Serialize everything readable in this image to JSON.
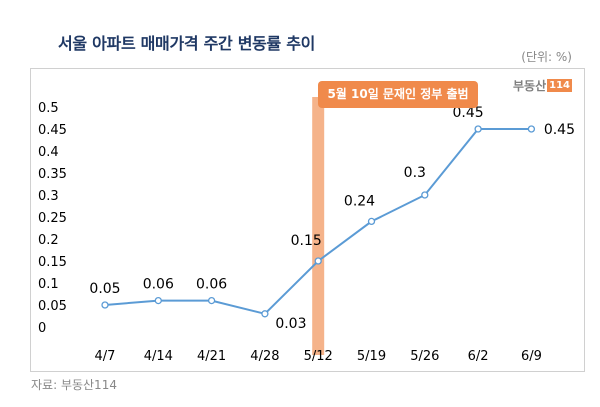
{
  "header": {
    "title": "서울 아파트 매매가격 주간 변동률 추이",
    "unit": "(단위: %)"
  },
  "logo": {
    "text": "부동산",
    "box": "114"
  },
  "annotation": {
    "text": "5월 10일 문재인 정부 출범",
    "color": "#f08a4b",
    "highlight_category": "5/12"
  },
  "source": "자료: 부동산114",
  "chart_data": {
    "type": "line",
    "title": "서울 아파트 매매가격 주간 변동률 추이",
    "categories": [
      "4/7",
      "4/14",
      "4/21",
      "4/28",
      "5/12",
      "5/19",
      "5/26",
      "6/2",
      "6/9"
    ],
    "series": [
      {
        "values": [
          0.05,
          0.06,
          0.06,
          0.03,
          0.15,
          0.24,
          0.3,
          0.45,
          0.45
        ],
        "color": "#5b9bd5"
      }
    ],
    "data_labels": [
      "0.05",
      "0.06",
      "0.06",
      "0.03",
      "0.15",
      "0.24",
      "0.3",
      "0.45",
      "0.45"
    ],
    "ylim": [
      0,
      0.5
    ],
    "yticks": [
      0,
      0.05,
      0.1,
      0.15,
      0.2,
      0.25,
      0.3,
      0.35,
      0.4,
      0.45,
      0.5
    ],
    "ytick_labels": [
      "0",
      "0.05",
      "0.1",
      "0.15",
      "0.2",
      "0.25",
      "0.3",
      "0.35",
      "0.4",
      "0.45",
      "0.5"
    ],
    "grid": false,
    "legend": "none"
  }
}
